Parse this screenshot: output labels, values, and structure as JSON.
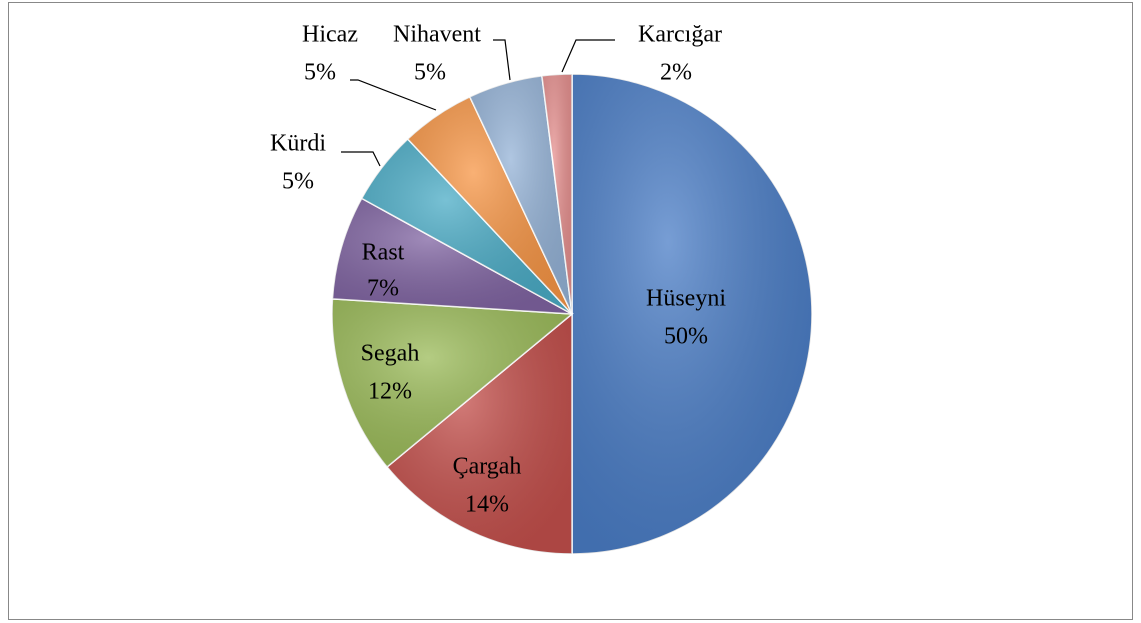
{
  "chart_data": {
    "type": "pie",
    "categories": [
      "Hüseyni",
      "Çargah",
      "Segah",
      "Rast",
      "Kürdi",
      "Hicaz",
      "Nihavent",
      "Karcığar"
    ],
    "values": [
      50,
      14,
      12,
      7,
      5,
      5,
      5,
      2
    ],
    "value_labels": [
      "50%",
      "14%",
      "12%",
      "7%",
      "5%",
      "5%",
      "5%",
      "2%"
    ],
    "colors": [
      "#4a7dc6",
      "#c4504c",
      "#9bbb59",
      "#8064a2",
      "#4bacc6",
      "#f79646",
      "#95b3d7",
      "#e6908f"
    ]
  }
}
